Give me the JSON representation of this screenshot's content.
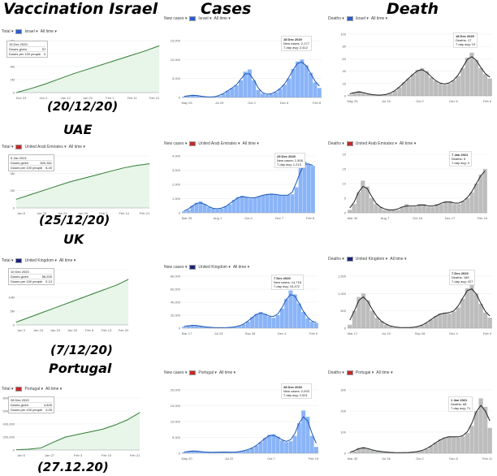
{
  "headers": {
    "vaccination": "Vaccination Israel",
    "cases": "Cases",
    "death": "Death"
  },
  "rows": [
    {
      "country": "Israel",
      "date_label": "(20/12/20)",
      "vaccination": {
        "controls": [
          "Total",
          "Israel",
          "All time"
        ],
        "tooltip": {
          "title": "19 Dec 2020",
          "rows": [
            [
              "Doses given",
              "57"
            ],
            [
              "Doses per 100 people",
              "0"
            ]
          ]
        }
      },
      "cases": {
        "controls": [
          "New cases",
          "Israel",
          "All time"
        ],
        "tooltip": {
          "title": "18 Dec 2020",
          "lines": [
            "New cases: 2,177",
            "7-day avg: 2,412"
          ]
        }
      },
      "deaths": {
        "controls": [
          "Deaths",
          "Israel",
          "All time"
        ],
        "tooltip": {
          "title": "18 Dec 2020",
          "lines": [
            "Deaths: 17",
            "7-day avg: 13"
          ]
        }
      }
    },
    {
      "country": "UAE",
      "date_label": "(25/12/20)",
      "vaccination": {
        "controls": [
          "Total",
          "United Arab Emirates",
          "All time"
        ],
        "tooltip": {
          "title": "5 Jan 2021",
          "rows": [
            [
              "Doses given",
              "820,361"
            ],
            [
              "Doses per 100 people",
              "8.40"
            ]
          ]
        }
      },
      "cases": {
        "controls": [
          "New cases",
          "United Arab Emirates",
          "All time"
        ],
        "tooltip": {
          "title": "29 Dec 2020",
          "lines": [
            "New cases: 1,506",
            "7-day avg: 1,213"
          ]
        }
      },
      "deaths": {
        "controls": [
          "Deaths",
          "United Arab Emirates",
          "All time"
        ],
        "tooltip": {
          "title": "7 Jan 2021",
          "lines": [
            "Deaths: 5",
            "7-day avg: 4"
          ]
        }
      }
    },
    {
      "country": "UK",
      "date_label": "(7/12/20)",
      "vaccination": {
        "controls": [
          "Total",
          "United Kingdom",
          "All time"
        ],
        "tooltip": {
          "title": "10 Dec 2020",
          "rows": [
            [
              "Doses given",
              "56,200"
            ],
            [
              "Doses per 100 people",
              "0.13"
            ]
          ]
        }
      },
      "cases": {
        "controls": [
          "New cases",
          "United Kingdom",
          "All time"
        ],
        "tooltip": {
          "title": "7 Dec 2020",
          "lines": [
            "New cases: 14,718",
            "7-day avg: 15,472"
          ]
        }
      },
      "deaths": {
        "controls": [
          "Deaths",
          "United Kingdom",
          "All time"
        ],
        "tooltip": {
          "title": "7 Dec 2020",
          "lines": [
            "Deaths: 189",
            "7-day avg: 427"
          ]
        }
      }
    },
    {
      "country": "Portugal",
      "date_label": "(27.12.20)",
      "vaccination": {
        "controls": [
          "Total",
          "Portugal",
          "All time"
        ],
        "tooltip": {
          "title": "28 Dec 2020",
          "rows": [
            [
              "Doses given",
              "4,826"
            ],
            [
              "Doses per 100 people",
              "0.05"
            ]
          ]
        }
      },
      "cases": {
        "controls": [
          "New cases",
          "Portugal",
          "All time"
        ],
        "tooltip": {
          "title": "28 Dec 2020",
          "lines": [
            "New cases: 2,093",
            "7-day avg: 2,521"
          ]
        }
      },
      "deaths": {
        "controls": [
          "Deaths",
          "Portugal",
          "All time"
        ],
        "tooltip": {
          "title": "1 Jan 2021",
          "lines": [
            "Deaths: 68",
            "7-day avg: 71"
          ]
        }
      }
    }
  ],
  "colors": {
    "vaccination": "#2e7d32",
    "vaccination_fill": "#e8f5e9",
    "cases_bar": "#8ab4f8",
    "cases_line": "#1a56b5",
    "deaths_bar": "#bdbdbd",
    "deaths_line": "#202124",
    "grid": "#e8eaed",
    "axis_text": "#5f6368",
    "flags": {
      "Israel": "#2a5bd7",
      "United Arab Emirates": "#c62828",
      "United Kingdom": "#1a237e",
      "Portugal": "#c62828"
    }
  },
  "chart_data": [
    {
      "type": "area",
      "panel": "israel-vaccination",
      "title": "",
      "ylim": [
        0,
        8000000
      ],
      "yticks": [
        "8M",
        "6M",
        "4M",
        "2M",
        "0"
      ],
      "xticks": [
        "Dec 23",
        "Jan 2",
        "Jan 12",
        "Jan 22",
        "Feb 1",
        "Feb 11",
        "Feb 21"
      ],
      "x": [
        0,
        1,
        2,
        3,
        4,
        5,
        6,
        7,
        8,
        9,
        10
      ],
      "values": [
        0,
        600000,
        1300000,
        2100000,
        2900000,
        3600000,
        4300000,
        5000000,
        5700000,
        6400000,
        7200000
      ]
    },
    {
      "type": "bar",
      "panel": "israel-cases",
      "title": "",
      "ylim": [
        0,
        15000
      ],
      "yticks": [
        "15,000",
        "10,000",
        "5,000",
        "0"
      ],
      "xticks": [
        "May 25",
        "Jul 29",
        "Oct 2",
        "Dec 6",
        "Feb 8"
      ],
      "values": [
        200,
        500,
        700,
        500,
        300,
        150,
        100,
        150,
        400,
        1000,
        1800,
        2500,
        3200,
        4500,
        6800,
        7400,
        4500,
        2000,
        1000,
        700,
        900,
        1400,
        2300,
        3400,
        5000,
        7500,
        9500,
        10000,
        8500,
        6500,
        4000,
        2500
      ]
    },
    {
      "type": "bar",
      "panel": "israel-deaths",
      "title": "",
      "ylim": [
        0,
        100
      ],
      "yticks": [
        "100",
        "80",
        "60",
        "40",
        "20",
        "0"
      ],
      "xticks": [
        "May 25",
        "Jul 29",
        "Oct 2",
        "Dec 6",
        "Feb 8"
      ],
      "values": [
        2,
        6,
        8,
        5,
        3,
        2,
        1,
        1,
        2,
        4,
        8,
        14,
        22,
        28,
        35,
        42,
        45,
        40,
        30,
        24,
        20,
        18,
        20,
        25,
        32,
        45,
        62,
        70,
        58,
        45,
        35,
        28
      ]
    },
    {
      "type": "area",
      "panel": "uae-vaccination",
      "title": "",
      "ylim": [
        0,
        6000000
      ],
      "yticks": [
        "6M",
        "4M",
        "2M",
        "0"
      ],
      "xticks": [
        "Jan 8",
        "Jan 15",
        "Jan 22",
        "Jan 29",
        "Feb 7",
        "Feb 14",
        "Feb 21"
      ],
      "x": [
        0,
        1,
        2,
        3,
        4,
        5,
        6,
        7,
        8,
        9,
        10
      ],
      "values": [
        1000000,
        1500000,
        2000000,
        2500000,
        3000000,
        3400000,
        3800000,
        4200000,
        4600000,
        4900000,
        5100000
      ]
    },
    {
      "type": "bar",
      "panel": "uae-cases",
      "title": "",
      "ylim": [
        0,
        4000
      ],
      "yticks": [
        "4,000",
        "3,000",
        "2,000",
        "1,000",
        "0"
      ],
      "xticks": [
        "Mar 29",
        "Aug 1",
        "Oct 4",
        "Dec 7",
        "Feb 8"
      ],
      "values": [
        100,
        200,
        500,
        700,
        800,
        600,
        400,
        300,
        250,
        300,
        450,
        600,
        900,
        1100,
        1200,
        1100,
        1000,
        1050,
        1150,
        1250,
        1300,
        1350,
        1300,
        1250,
        1200,
        1250,
        1300,
        1800,
        3300,
        3600,
        3400,
        3300
      ]
    },
    {
      "type": "bar",
      "panel": "uae-deaths",
      "title": "",
      "ylim": [
        0,
        20
      ],
      "yticks": [
        "20",
        "15",
        "10",
        "5",
        "0"
      ],
      "xticks": [
        "Mar 30",
        "Aug 7",
        "Oct 18",
        "Dec 17",
        "Feb 10"
      ],
      "values": [
        1,
        3,
        7,
        11,
        9,
        5,
        3,
        2,
        1,
        1,
        1,
        1,
        2,
        3,
        2,
        2,
        3,
        3,
        2,
        2,
        3,
        3,
        4,
        4,
        3,
        3,
        4,
        5,
        7,
        10,
        13,
        15
      ]
    },
    {
      "type": "area",
      "panel": "uk-vaccination",
      "title": "",
      "ylim": [
        0,
        20000000
      ],
      "yticks": [
        "20M",
        "15M",
        "10M",
        "5M",
        "0"
      ],
      "xticks": [
        "Jan 3",
        "Jan 16",
        "Jan 23",
        "Jan 30",
        "Feb 6",
        "Feb 13",
        "Feb 20"
      ],
      "x": [
        0,
        1,
        2,
        3,
        4,
        5,
        6,
        7,
        8,
        9,
        10
      ],
      "values": [
        1000000,
        2500000,
        4000000,
        5500000,
        7000000,
        8500000,
        10000000,
        11500000,
        13000000,
        14500000,
        16500000
      ]
    },
    {
      "type": "bar",
      "panel": "uk-cases",
      "title": "",
      "ylim": [
        0,
        80000
      ],
      "yticks": [
        "80,000",
        "60,000",
        "40,000",
        "20,000",
        "0"
      ],
      "xticks": [
        "Mar 17",
        "Jul 23",
        "Sep 28",
        "Dec 4",
        "Feb 9"
      ],
      "values": [
        2000,
        4000,
        5000,
        4000,
        3000,
        2000,
        1200,
        800,
        700,
        700,
        800,
        1200,
        2000,
        3500,
        6000,
        10000,
        17000,
        22000,
        25000,
        22000,
        18000,
        16000,
        20000,
        30000,
        45000,
        58000,
        52000,
        38000,
        25000,
        15000,
        10000,
        8000
      ]
    },
    {
      "type": "bar",
      "panel": "uk-deaths",
      "title": "",
      "ylim": [
        0,
        1500
      ],
      "yticks": [
        "1,500",
        "1,000",
        "500",
        "0"
      ],
      "xticks": [
        "Mar 17",
        "Jul 23",
        "Sep 28",
        "Dec 4",
        "Feb 9"
      ],
      "values": [
        100,
        500,
        900,
        1000,
        800,
        500,
        300,
        200,
        100,
        60,
        30,
        20,
        15,
        15,
        20,
        40,
        80,
        150,
        250,
        350,
        420,
        450,
        420,
        480,
        600,
        850,
        1150,
        1250,
        1000,
        700,
        450,
        300
      ]
    },
    {
      "type": "area",
      "panel": "portugal-vaccination",
      "title": "",
      "ylim": [
        0,
        1000000
      ],
      "yticks": [
        "800,000",
        "600,000",
        "400,000",
        "200,000",
        "0"
      ],
      "xticks": [
        "Jan 6",
        "Jan 27",
        "Feb 3",
        "Feb 10",
        "Feb 21"
      ],
      "x": [
        0,
        1,
        2,
        3,
        4,
        5,
        6,
        7,
        8,
        9,
        10
      ],
      "values": [
        5000,
        15000,
        40000,
        150000,
        250000,
        300000,
        350000,
        400000,
        480000,
        580000,
        720000
      ]
    },
    {
      "type": "bar",
      "panel": "portugal-cases",
      "title": "",
      "ylim": [
        0,
        20000
      ],
      "yticks": [
        "20,000",
        "15,000",
        "10,000",
        "5,000",
        "0"
      ],
      "xticks": [
        "May 20",
        "Jul 22",
        "Oct 7",
        "Feb 10"
      ],
      "values": [
        300,
        600,
        800,
        700,
        500,
        350,
        300,
        300,
        350,
        400,
        400,
        350,
        350,
        500,
        800,
        1100,
        1600,
        2400,
        3500,
        4800,
        5800,
        6000,
        5200,
        4000,
        3500,
        3800,
        5500,
        9500,
        13500,
        11500,
        5500,
        2000
      ]
    },
    {
      "type": "bar",
      "panel": "portugal-deaths",
      "title": "",
      "ylim": [
        0,
        300
      ],
      "yticks": [
        "300",
        "200",
        "100",
        "0"
      ],
      "xticks": [
        "Mar 30",
        "Jul 26",
        "Oct 2",
        "Dec 8",
        "Feb 11"
      ],
      "values": [
        2,
        10,
        25,
        30,
        22,
        15,
        10,
        8,
        6,
        4,
        3,
        3,
        3,
        4,
        5,
        8,
        12,
        20,
        35,
        50,
        65,
        75,
        80,
        78,
        75,
        80,
        95,
        130,
        200,
        260,
        220,
        120
      ]
    }
  ]
}
